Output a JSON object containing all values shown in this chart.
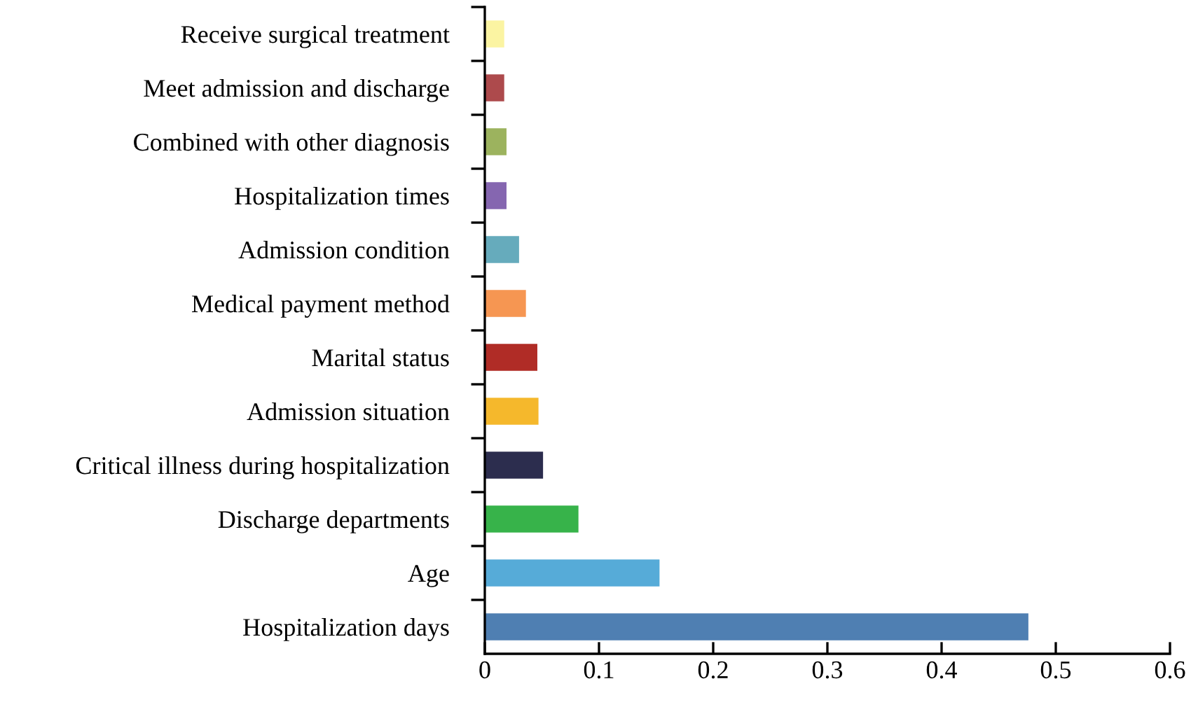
{
  "chart_data": {
    "type": "bar",
    "orientation": "horizontal",
    "categories": [
      "Receive surgical treatment",
      "Meet admission and discharge",
      "Combined with other diagnosis",
      "Hospitalization times",
      "Admission condition",
      "Medical payment method",
      "Marital status",
      "Admission situation",
      "Critical illness during hospitalization",
      "Discharge departments",
      "Age",
      "Hospitalization days"
    ],
    "values": [
      0.017,
      0.017,
      0.019,
      0.019,
      0.03,
      0.036,
      0.046,
      0.047,
      0.051,
      0.082,
      0.153,
      0.476
    ],
    "colors": [
      "#fbf4a2",
      "#ad4a4c",
      "#9cb35e",
      "#8566b0",
      "#66abbc",
      "#f69652",
      "#b02c26",
      "#f5b82c",
      "#2c2d4e",
      "#37b34a",
      "#56abd8",
      "#4f7fb2"
    ],
    "xlim": [
      0,
      0.6
    ],
    "xticks": [
      0,
      0.1,
      0.2,
      0.3,
      0.4,
      0.5,
      0.6
    ],
    "grid": false
  }
}
